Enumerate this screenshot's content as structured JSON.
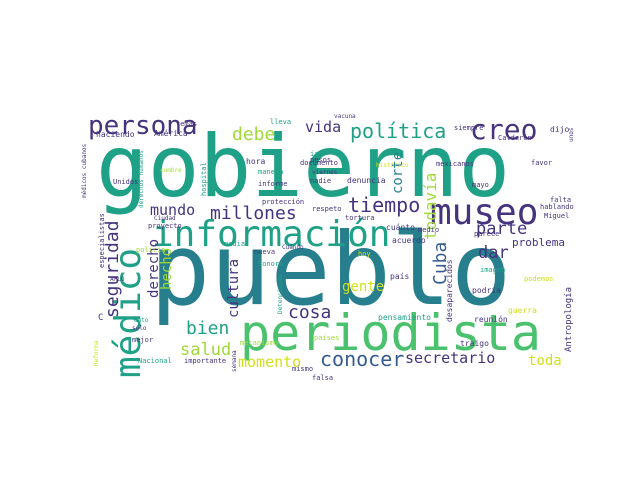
{
  "palette": {
    "purple": "#440154",
    "indigo": "#46337e",
    "blue": "#365c8d",
    "steel": "#277f8e",
    "teal": "#1fa187",
    "green": "#4ac16d",
    "lime": "#a0da39",
    "yellow": "#d0e11c"
  },
  "words": [
    {
      "text": "pueblo",
      "color": "steel"
    },
    {
      "text": "gobierno",
      "color": "teal"
    },
    {
      "text": "periodista",
      "color": "green"
    },
    {
      "text": "información",
      "color": "teal"
    },
    {
      "text": "museo",
      "color": "indigo"
    },
    {
      "text": "médico",
      "color": "teal"
    },
    {
      "text": "creo",
      "color": "indigo"
    },
    {
      "text": "persona",
      "color": "indigo"
    },
    {
      "text": "política",
      "color": "teal"
    },
    {
      "text": "millones",
      "color": "indigo"
    },
    {
      "text": "tiempo",
      "color": "indigo"
    },
    {
      "text": "conocer",
      "color": "blue"
    },
    {
      "text": "secretario",
      "color": "indigo"
    },
    {
      "text": "momento",
      "color": "yellow"
    },
    {
      "text": "salud",
      "color": "lime"
    },
    {
      "text": "bien",
      "color": "teal"
    },
    {
      "text": "cosa",
      "color": "indigo"
    },
    {
      "text": "debe",
      "color": "lime"
    },
    {
      "text": "vida",
      "color": "indigo"
    },
    {
      "text": "mundo",
      "color": "indigo"
    },
    {
      "text": "parte",
      "color": "indigo"
    },
    {
      "text": "dar",
      "color": "indigo"
    },
    {
      "text": "Cuba",
      "color": "blue"
    },
    {
      "text": "todavía",
      "color": "lime"
    },
    {
      "text": "corte",
      "color": "steel"
    },
    {
      "text": "seguridad",
      "color": "indigo"
    },
    {
      "text": "derecho",
      "color": "indigo"
    },
    {
      "text": "hecho",
      "color": "lime"
    },
    {
      "text": "cultura",
      "color": "indigo"
    },
    {
      "text": "gente",
      "color": "yellow"
    },
    {
      "text": "toda",
      "color": "yellow"
    },
    {
      "text": "problema",
      "color": "indigo"
    },
    {
      "text": "Antropología",
      "color": "indigo"
    },
    {
      "text": "temas",
      "color": "indigo"
    },
    {
      "text": "haciendo",
      "color": "indigo"
    },
    {
      "text": "América",
      "color": "indigo"
    },
    {
      "text": "médicos cubanos",
      "color": "indigo"
    },
    {
      "text": "derechos humanos",
      "color": "teal"
    },
    {
      "text": "cumbre",
      "color": "lime"
    },
    {
      "text": "hospital",
      "color": "teal"
    },
    {
      "text": "Unidos",
      "color": "indigo"
    },
    {
      "text": "especialistas",
      "color": "indigo"
    },
    {
      "text": "proyecto",
      "color": "indigo"
    },
    {
      "text": "Ciudad",
      "color": "indigo"
    },
    {
      "text": "policía",
      "color": "lime"
    },
    {
      "text": "AMLO",
      "color": "indigo"
    },
    {
      "text": "mejor",
      "color": "indigo"
    },
    {
      "text": "Reforma",
      "color": "yellow"
    },
    {
      "text": "Nacional",
      "color": "teal"
    },
    {
      "text": "importante",
      "color": "indigo"
    },
    {
      "text": "semana",
      "color": "indigo"
    },
    {
      "text": "lleva",
      "color": "teal"
    },
    {
      "text": "vacuna",
      "color": "indigo"
    },
    {
      "text": "ir",
      "color": "teal"
    },
    {
      "text": "documento",
      "color": "indigo"
    },
    {
      "text": "histórico",
      "color": "yellow"
    },
    {
      "text": "mexicanos",
      "color": "indigo"
    },
    {
      "text": "siempre",
      "color": "indigo"
    },
    {
      "text": "dijo",
      "color": "indigo"
    },
    {
      "text": "Calderón",
      "color": "indigo"
    },
    {
      "text": "unos",
      "color": "indigo"
    },
    {
      "text": "viernes",
      "color": "indigo"
    },
    {
      "text": "pesos",
      "color": "indigo"
    },
    {
      "text": "hora",
      "color": "indigo"
    },
    {
      "text": "manera",
      "color": "teal"
    },
    {
      "text": "informe",
      "color": "indigo"
    },
    {
      "text": "nadie",
      "color": "indigo"
    },
    {
      "text": "denuncia",
      "color": "indigo"
    },
    {
      "text": "favor",
      "color": "indigo"
    },
    {
      "text": "mayo",
      "color": "indigo"
    },
    {
      "text": "falta",
      "color": "indigo"
    },
    {
      "text": "hablando",
      "color": "indigo"
    },
    {
      "text": "Miguel",
      "color": "indigo"
    },
    {
      "text": "protección",
      "color": "indigo"
    },
    {
      "text": "respeto",
      "color": "indigo"
    },
    {
      "text": "tortura",
      "color": "indigo"
    },
    {
      "text": "cuánto",
      "color": "indigo"
    },
    {
      "text": "acuerdo",
      "color": "indigo"
    },
    {
      "text": "hoy",
      "color": "yellow"
    },
    {
      "text": "media",
      "color": "teal"
    },
    {
      "text": "nueva",
      "color": "indigo"
    },
    {
      "text": "Cuándo",
      "color": "indigo"
    },
    {
      "text": "Sonora",
      "color": "teal"
    },
    {
      "text": "Detenciones",
      "color": "teal"
    },
    {
      "text": "mecanismo",
      "color": "lime"
    },
    {
      "text": "país",
      "color": "indigo"
    },
    {
      "text": "desaparecidos",
      "color": "indigo"
    },
    {
      "text": "imagen",
      "color": "teal"
    },
    {
      "text": "podemos",
      "color": "yellow"
    },
    {
      "text": "podría",
      "color": "indigo"
    },
    {
      "text": "guerra",
      "color": "yellow"
    },
    {
      "text": "reunión",
      "color": "indigo"
    },
    {
      "text": "traigo",
      "color": "indigo"
    },
    {
      "text": "parece",
      "color": "indigo"
    },
    {
      "text": "medio",
      "color": "indigo"
    },
    {
      "text": "pensamiento",
      "color": "teal"
    },
    {
      "text": "mismo",
      "color": "indigo"
    },
    {
      "text": "falsa",
      "color": "indigo"
    },
    {
      "text": "países",
      "color": "lime"
    },
    {
      "text": "sólo",
      "color": "indigo"
    },
    {
      "text": "dato",
      "color": "teal"
    },
    {
      "text": "C",
      "color": "indigo"
    }
  ]
}
